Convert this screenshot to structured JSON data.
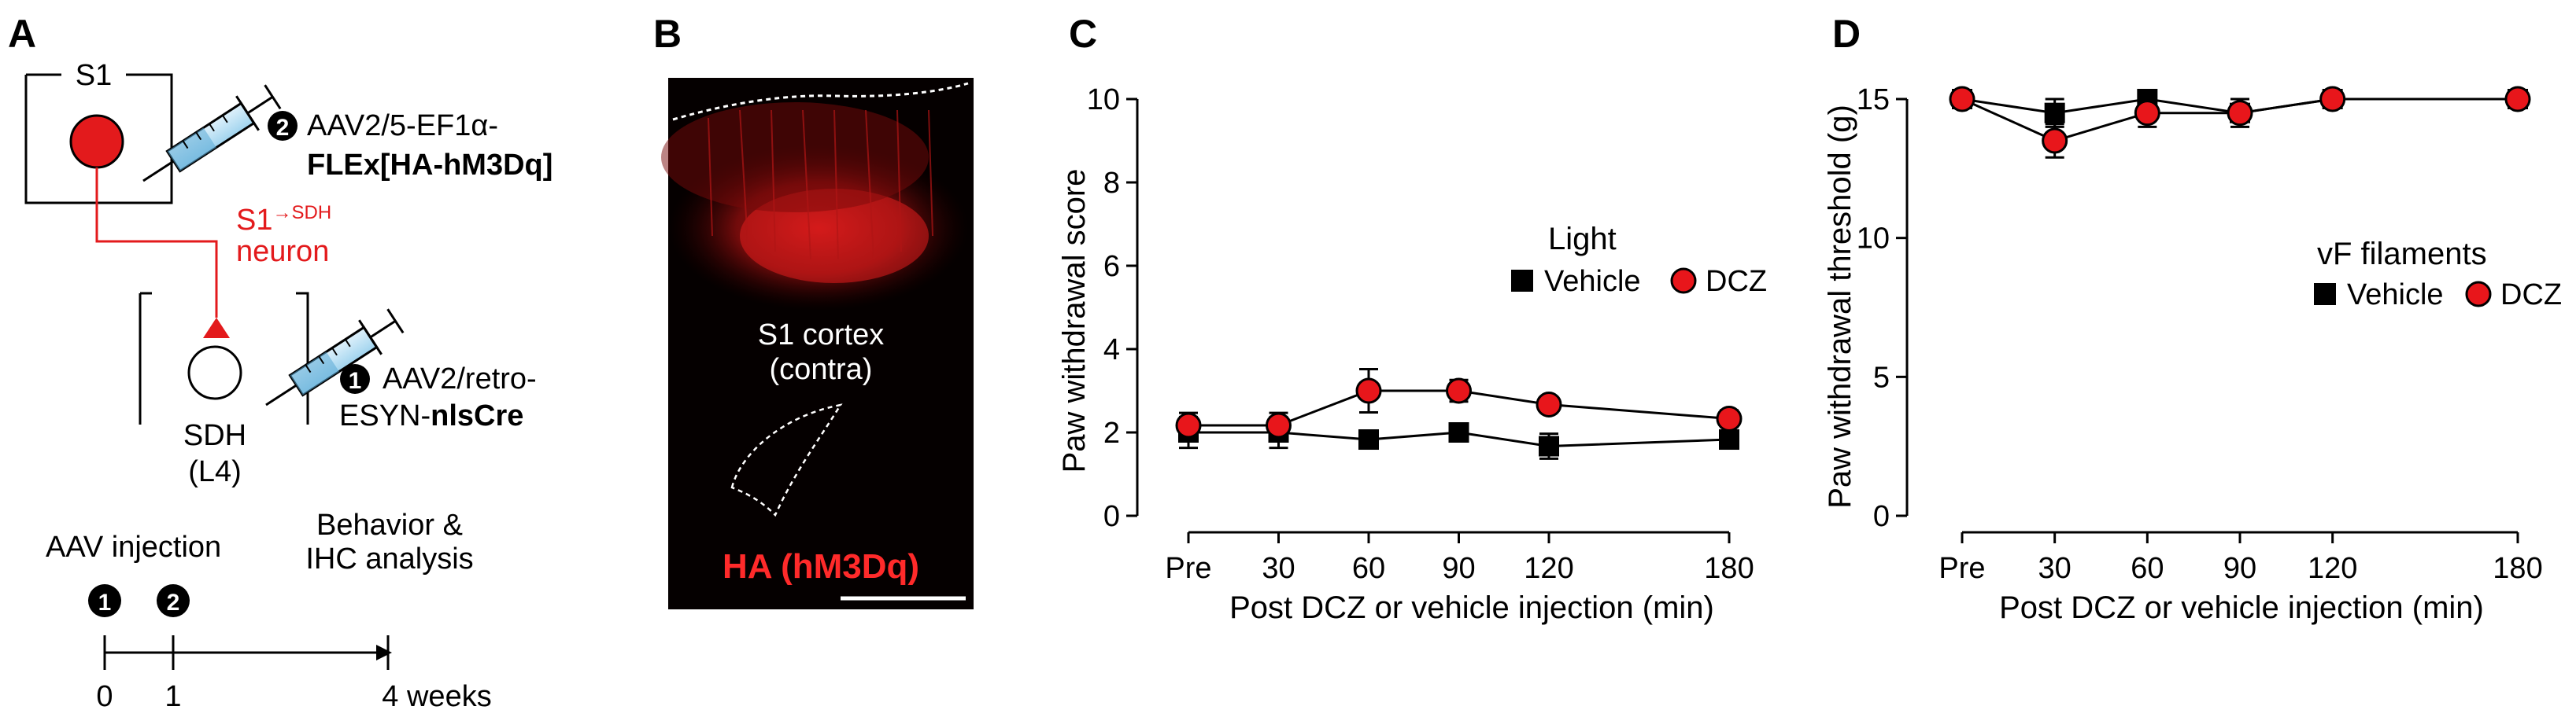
{
  "colors": {
    "red": "#e31a1c",
    "black": "#000000",
    "image_bg": "#050000",
    "marker_red": "#e8161b"
  },
  "panel_a": {
    "letter": "A",
    "s1_label": "S1",
    "step2_num": "2",
    "step2_line1": "AAV2/5-EF1α-",
    "step2_line2": "FLEx[HA-hM3Dq]",
    "neuron_prefix": "S1",
    "neuron_sup": "→SDH",
    "neuron_label": "neuron",
    "step1_num": "1",
    "step1_line1": "AAV2/retro-",
    "step1_line2_plain": "ESYN-",
    "step1_line2_bold": "nlsCre",
    "sdh_label": "SDH",
    "sdh_layer": "(L4)",
    "timeline": {
      "aav_label": "AAV injection",
      "behavior_line1": "Behavior &",
      "behavior_line2": "IHC analysis",
      "marker1": "1",
      "marker2": "2",
      "tick0": "0",
      "tick1": "1",
      "tick_end": "4 weeks"
    }
  },
  "panel_b": {
    "letter": "B",
    "region_line1": "S1 cortex",
    "region_line2": "(contra)",
    "stain_label": "HA (hM3Dq)"
  },
  "chart_data": [
    {
      "panel": "C",
      "type": "line",
      "ylabel": "Paw withdrawal score",
      "xlabel": "Post DCZ or vehicle injection (min)",
      "x": [
        0,
        30,
        60,
        90,
        120,
        180
      ],
      "x_tick_labels": [
        "Pre",
        "30",
        "60",
        "90",
        "120",
        "180"
      ],
      "ylim": [
        0,
        10
      ],
      "y_ticks": [
        0,
        2,
        4,
        6,
        8,
        10
      ],
      "legend_title": "Light",
      "legend_position": "upper-right",
      "series": [
        {
          "name": "Vehicle",
          "marker": "square",
          "color": "#000000",
          "values": [
            2.0,
            2.0,
            1.83,
            2.0,
            1.67,
            1.83
          ],
          "errors": [
            0.37,
            0.37,
            0.0,
            0.0,
            0.3,
            0.0
          ]
        },
        {
          "name": "DCZ",
          "marker": "circle",
          "color": "#e8161b",
          "values": [
            2.17,
            2.17,
            3.0,
            3.0,
            2.67,
            2.33
          ],
          "errors": [
            0.3,
            0.3,
            0.52,
            0.26,
            0.0,
            0.2
          ]
        }
      ]
    },
    {
      "panel": "D",
      "type": "line",
      "ylabel": "Paw withdrawal threshold (g)",
      "xlabel": "Post DCZ or vehicle injection (min)",
      "x": [
        0,
        30,
        60,
        90,
        120,
        180
      ],
      "x_tick_labels": [
        "Pre",
        "30",
        "60",
        "90",
        "120",
        "180"
      ],
      "ylim": [
        0,
        15
      ],
      "y_ticks": [
        0,
        5,
        10,
        15
      ],
      "legend_title": "vF filaments",
      "legend_position": "upper-right",
      "series": [
        {
          "name": "Vehicle",
          "marker": "square",
          "color": "#000000",
          "values": [
            15.0,
            14.5,
            15.0,
            14.5,
            15.0,
            15.0
          ],
          "errors": [
            0.0,
            0.5,
            0.0,
            0.5,
            0.0,
            0.0
          ]
        },
        {
          "name": "DCZ",
          "marker": "circle",
          "color": "#e8161b",
          "values": [
            15.0,
            13.5,
            14.5,
            14.5,
            15.0,
            15.0
          ],
          "errors": [
            0.0,
            0.6,
            0.5,
            0.0,
            0.0,
            0.0
          ]
        }
      ]
    }
  ]
}
